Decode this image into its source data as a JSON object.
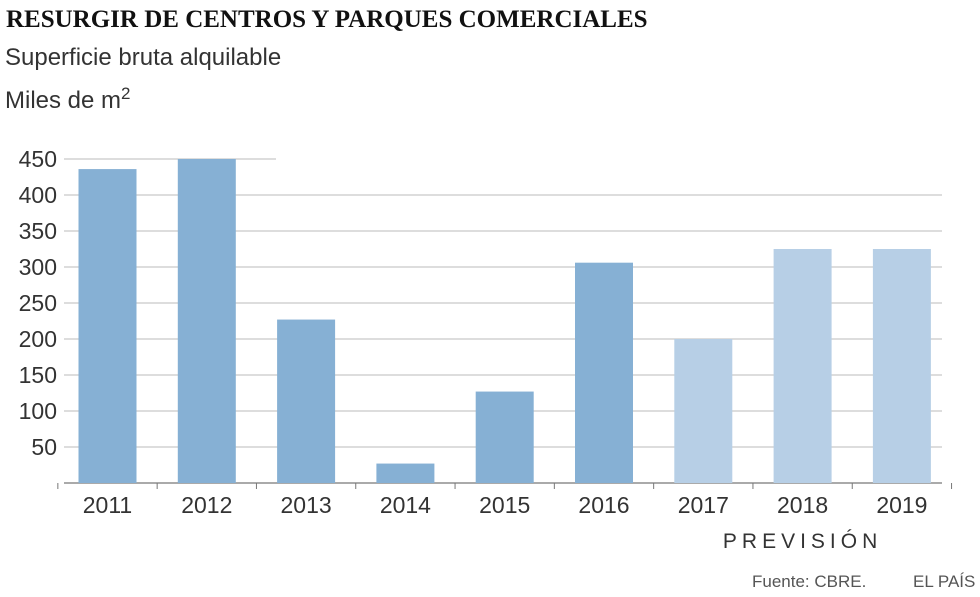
{
  "header": {
    "title": "RESURGIR DE CENTROS Y PARQUES COMERCIALES",
    "subtitle": "Superficie bruta alquilable",
    "unit_label": "Miles de m",
    "unit_superscript": "2"
  },
  "chart_data": {
    "type": "bar",
    "title": "RESURGIR DE CENTROS Y PARQUES COMERCIALES",
    "subtitle": "Superficie bruta alquilable",
    "ylabel": "Miles de m2",
    "xlabel": "",
    "categories": [
      "2011",
      "2012",
      "2013",
      "2014",
      "2015",
      "2016",
      "2017",
      "2018",
      "2019"
    ],
    "values": [
      436,
      450,
      227,
      27,
      127,
      306,
      200,
      325,
      325
    ],
    "forecast": [
      false,
      false,
      false,
      false,
      false,
      false,
      true,
      true,
      true
    ],
    "forecast_label": "PREVISIÓN",
    "ylim": [
      0,
      450
    ],
    "yticks": [
      50,
      100,
      150,
      200,
      250,
      300,
      350,
      400,
      450
    ],
    "grid": true,
    "colors": {
      "actual": "#86b0d4",
      "forecast": "#b7cfe6",
      "grid": "#bbbbbb",
      "axis": "#777777"
    }
  },
  "footer": {
    "source": "Fuente: CBRE.",
    "brand": "EL PAÍS"
  }
}
